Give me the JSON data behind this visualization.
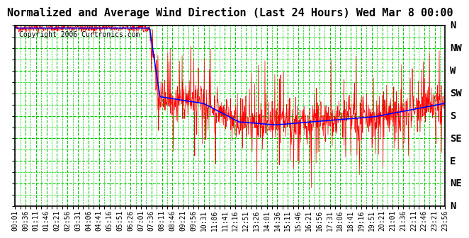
{
  "title": "Normalized and Average Wind Direction (Last 24 Hours) Wed Mar 8 00:00",
  "copyright": "Copyright 2006 Curtronics.com",
  "background_color": "#ffffff",
  "plot_bg_color": "#ffffff",
  "grid_color": "#00cc00",
  "y_labels": [
    "N",
    "NW",
    "W",
    "SW",
    "S",
    "SE",
    "E",
    "NE",
    "N"
  ],
  "y_ticks": [
    360,
    315,
    270,
    225,
    180,
    135,
    90,
    45,
    0
  ],
  "y_min": 0,
  "y_max": 360,
  "x_tick_labels": [
    "00:01",
    "00:36",
    "01:11",
    "01:46",
    "02:21",
    "02:56",
    "03:31",
    "04:06",
    "04:41",
    "05:16",
    "05:51",
    "06:26",
    "07:01",
    "07:36",
    "08:11",
    "08:46",
    "09:21",
    "09:56",
    "10:31",
    "11:06",
    "11:41",
    "12:16",
    "12:51",
    "13:26",
    "14:01",
    "14:36",
    "15:11",
    "15:46",
    "16:21",
    "16:56",
    "17:31",
    "18:06",
    "18:41",
    "19:16",
    "19:51",
    "20:21",
    "21:01",
    "21:36",
    "22:11",
    "22:46",
    "23:21",
    "23:56"
  ],
  "raw_line_color": "red",
  "avg_line_color": "blue",
  "title_fontsize": 11,
  "copyright_fontsize": 7,
  "tick_fontsize": 7,
  "ylabel_fontsize": 10
}
